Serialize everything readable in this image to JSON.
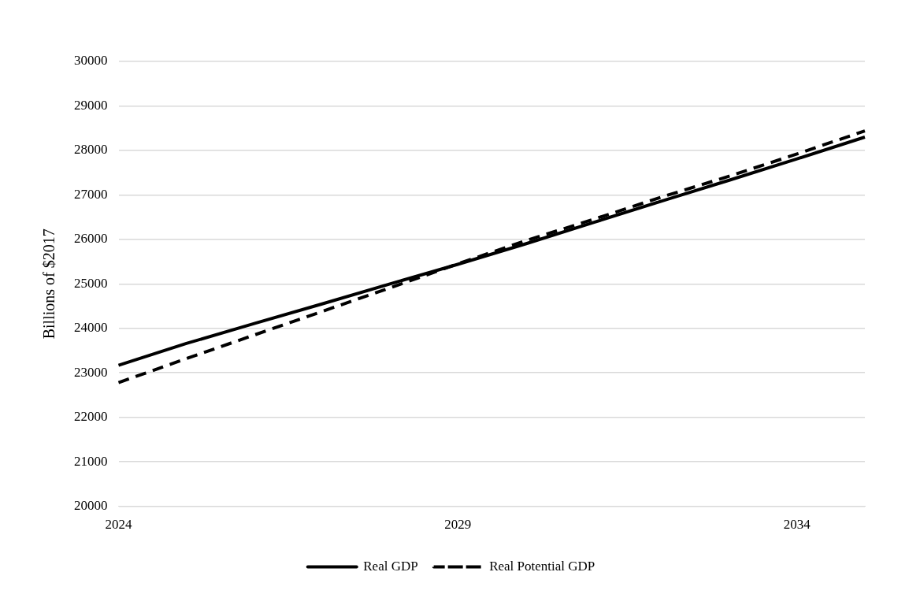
{
  "chart_data": {
    "type": "line",
    "ylabel": "Billions of $2017",
    "categories": [
      "2024",
      null,
      null,
      null,
      null,
      "2029",
      null,
      null,
      null,
      null,
      "2034",
      null
    ],
    "series": [
      {
        "name": "Real GDP",
        "color": "#000000",
        "line_style": "solid",
        "values": [
          23170,
          23660,
          24110,
          24550,
          25000,
          25440,
          25900,
          26380,
          26860,
          27330,
          27810,
          28300
        ]
      },
      {
        "name": "Real Potential GDP",
        "color": "#000000",
        "line_style": "dashed",
        "values": [
          22780,
          23320,
          23850,
          24380,
          24910,
          25450,
          25970,
          26450,
          26950,
          27420,
          27920,
          28440
        ]
      }
    ],
    "ylim": [
      20000,
      30000
    ],
    "yticks": [
      20000,
      21000,
      22000,
      23000,
      24000,
      25000,
      26000,
      27000,
      28000,
      29000,
      30000
    ],
    "grid": "y",
    "legend": "bottom",
    "marker": "none"
  }
}
